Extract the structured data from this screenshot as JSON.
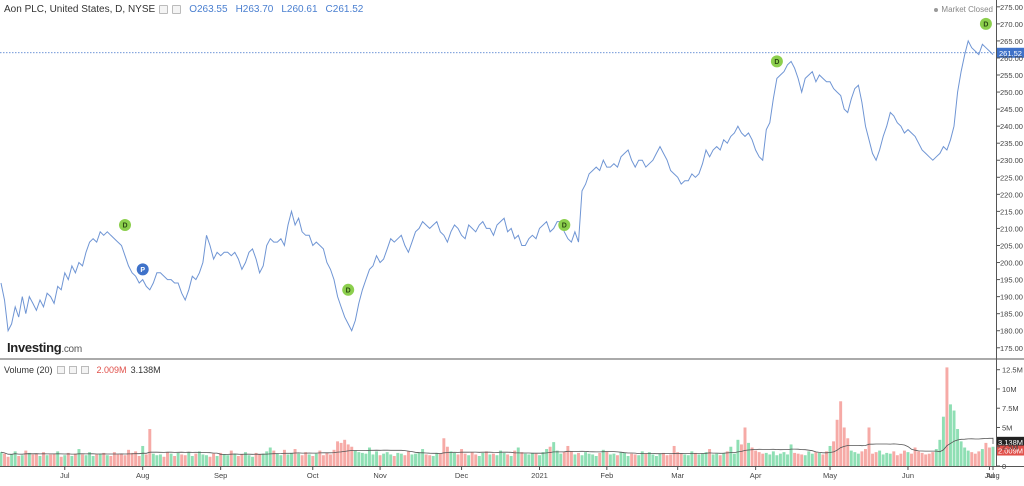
{
  "header": {
    "title": "Aon PLC, United States, D, NYSE",
    "open": "O263.55",
    "high": "H263.70",
    "low": "L260.61",
    "close": "C261.52",
    "market_status": "Market Closed"
  },
  "logo": {
    "brand": "Investing",
    "domain": ".com"
  },
  "volume_legend": {
    "label": "Volume (20)",
    "value1": "2.009M",
    "value2": "3.138M"
  },
  "colors": {
    "price_line": "#6f95d4",
    "up_volume": "#8fdfb4",
    "down_volume": "#f6aaa6",
    "last_price_tag": "#3f72c9",
    "dividend_marker": "#8ccf4d",
    "event_marker": "#3f72c9",
    "ma_line": "#555555"
  },
  "chart_data": [
    {
      "type": "line",
      "title": "Aon PLC, United States, D, NYSE",
      "xlabel": "",
      "ylabel": "",
      "ylim": [
        172,
        277
      ],
      "yticks": [
        175,
        180,
        185,
        190,
        195,
        200,
        205,
        210,
        215,
        220,
        225,
        230,
        235,
        240,
        245,
        250,
        255,
        260,
        265,
        270,
        275
      ],
      "ytick_labels": [
        "175.00",
        "180.00",
        "185.00",
        "190.00",
        "195.00",
        "200.00",
        "205.00",
        "210.00",
        "215.00",
        "220.00",
        "225.00",
        "230.00",
        "235.00",
        "240.00",
        "245.00",
        "250.00",
        "255.00",
        "260.00",
        "265.00",
        "270.00",
        "275.00"
      ],
      "x_tick_labels": [
        "Jul",
        "Aug",
        "Sep",
        "Oct",
        "Nov",
        "Dec",
        "2021",
        "Feb",
        "Mar",
        "Apr",
        "May",
        "Jun",
        "Jul",
        "Aug"
      ],
      "last_price": 261.52,
      "last_price_label": "261.52",
      "grid": false,
      "series": [
        {
          "values": [
            194,
            189,
            180,
            182,
            187,
            184,
            190,
            185,
            190,
            188,
            186,
            189,
            187,
            191,
            190,
            188,
            193,
            192,
            197,
            195,
            199,
            197,
            200,
            199,
            203,
            206,
            207,
            206,
            209,
            208,
            209,
            208,
            207,
            206,
            205,
            202,
            199,
            197,
            196,
            194,
            195,
            193,
            192,
            194,
            197,
            197,
            196,
            195,
            195,
            194,
            194,
            191,
            189,
            192,
            196,
            195,
            197,
            200,
            208,
            205,
            201,
            203,
            202,
            203,
            203,
            202,
            203,
            201,
            198,
            200,
            203,
            204,
            201,
            197,
            199,
            205,
            207,
            206,
            206,
            207,
            205,
            211,
            215,
            211,
            213,
            209,
            208,
            208,
            205,
            206,
            205,
            204,
            200,
            198,
            195,
            190,
            187,
            184,
            182,
            180,
            183,
            188,
            192,
            195,
            198,
            199,
            202,
            200,
            201,
            204,
            207,
            206,
            207,
            208,
            205,
            203,
            206,
            209,
            210,
            212,
            211,
            210,
            211,
            212,
            209,
            208,
            206,
            209,
            211,
            210,
            208,
            207,
            211,
            210,
            209,
            211,
            212,
            210,
            210,
            208,
            211,
            212,
            213,
            209,
            210,
            207,
            208,
            205,
            205,
            207,
            208,
            207,
            210,
            211,
            212,
            209,
            210,
            212,
            212,
            209,
            207,
            206,
            209,
            206,
            221,
            223,
            226,
            227,
            228,
            227,
            230,
            228,
            228,
            229,
            228,
            231,
            232,
            233,
            230,
            228,
            230,
            230,
            228,
            229,
            230,
            232,
            234,
            232,
            230,
            227,
            226,
            225,
            223,
            224,
            224,
            226,
            225,
            226,
            229,
            233,
            231,
            233,
            234,
            233,
            236,
            235,
            237,
            238,
            240,
            238,
            237,
            238,
            236,
            233,
            231,
            230,
            239,
            241,
            248,
            254,
            255,
            256,
            258,
            259,
            257,
            254,
            250,
            254,
            255,
            256,
            253,
            255,
            254,
            253,
            253,
            251,
            250,
            249,
            245,
            244,
            248,
            251,
            252,
            247,
            240,
            236,
            232,
            230,
            233,
            237,
            240,
            244,
            243,
            241,
            240,
            238,
            239,
            238,
            237,
            235,
            233,
            232,
            231,
            230,
            231,
            232,
            234,
            233,
            236,
            240,
            250,
            256,
            261,
            265,
            263,
            262,
            261,
            264,
            263,
            262,
            261
          ]
        }
      ],
      "markers": [
        {
          "label": "D",
          "index": 35,
          "value": 211
        },
        {
          "label": "P",
          "index": 40,
          "value": 198
        },
        {
          "label": "D",
          "index": 98,
          "value": 192
        },
        {
          "label": "D",
          "index": 159,
          "value": 211
        },
        {
          "label": "D",
          "index": 219,
          "value": 259
        },
        {
          "label": "D",
          "index": 278,
          "value": 270
        }
      ]
    },
    {
      "type": "bar",
      "title": "Volume (20)",
      "xlabel": "",
      "ylabel": "",
      "ylim": [
        0,
        13.5
      ],
      "yticks": [
        0,
        2.5,
        5,
        7.5,
        10,
        12.5
      ],
      "ytick_labels": [
        "0",
        "2.5M",
        "5M",
        "7.5M",
        "10M",
        "12.5M"
      ],
      "tag_values": [
        3.138,
        2.009
      ],
      "tag_labels": [
        "3.138M",
        "2.009M"
      ],
      "series": [
        {
          "values": [
            1.8,
            1.6,
            1.2,
            1.5,
            1.9,
            1.3,
            1.4,
            2.0,
            1.7,
            1.5,
            1.6,
            1.3,
            1.8,
            1.4,
            1.5,
            1.6,
            1.9,
            1.2,
            1.4,
            1.7,
            1.3,
            1.6,
            2.2,
            1.5,
            1.4,
            1.8,
            1.3,
            1.5,
            1.6,
            1.7,
            1.4,
            1.3,
            1.8,
            1.5,
            1.6,
            1.4,
            2.1,
            1.7,
            1.9,
            1.3,
            2.6,
            1.5,
            4.8,
            1.6,
            1.4,
            1.5,
            1.2,
            1.8,
            1.6,
            1.3,
            1.7,
            1.5,
            1.4,
            1.8,
            1.3,
            1.6,
            1.9,
            1.5,
            1.4,
            1.2,
            1.6,
            1.3,
            1.7,
            1.5,
            1.4,
            2.0,
            1.6,
            1.3,
            1.5,
            1.8,
            1.4,
            1.2,
            1.7,
            1.5,
            1.6,
            1.9,
            2.4,
            2.0,
            1.6,
            1.4,
            2.1,
            1.5,
            1.7,
            2.2,
            1.6,
            1.4,
            1.8,
            1.5,
            1.3,
            1.6,
            2.0,
            1.4,
            1.7,
            1.5,
            2.1,
            3.2,
            3.0,
            3.4,
            2.8,
            2.5,
            2.0,
            1.8,
            1.7,
            1.6,
            2.4,
            1.5,
            1.9,
            1.4,
            1.6,
            1.8,
            1.5,
            1.3,
            1.7,
            1.6,
            1.4,
            1.9,
            1.5,
            1.6,
            1.8,
            2.2,
            1.5,
            1.4,
            1.3,
            1.7,
            1.6,
            3.6,
            2.5,
            1.9,
            1.7,
            1.5,
            2.2,
            1.6,
            1.4,
            1.8,
            1.5,
            1.3,
            1.7,
            1.9,
            1.5,
            1.6,
            1.4,
            2.0,
            1.7,
            1.5,
            1.3,
            2.0,
            2.4,
            1.8,
            1.6,
            1.5,
            1.7,
            1.6,
            1.4,
            1.8,
            2.2,
            2.5,
            3.1,
            2.0,
            1.6,
            1.8,
            2.6,
            1.9,
            1.5,
            1.7,
            1.4,
            1.8,
            1.6,
            1.5,
            1.3,
            1.7,
            2.1,
            1.9,
            1.5,
            1.6,
            1.4,
            1.8,
            1.7,
            1.3,
            1.6,
            1.5,
            1.4,
            1.9,
            1.6,
            1.8,
            1.5,
            1.3,
            1.6,
            1.7,
            1.4,
            1.5,
            2.6,
            1.8,
            1.6,
            1.5,
            1.4,
            1.9,
            1.7,
            1.5,
            1.6,
            1.8,
            2.2,
            1.5,
            1.6,
            1.4,
            1.7,
            1.9,
            2.5,
            1.6,
            3.4,
            2.8,
            5.0,
            3.0,
            2.4,
            2.0,
            1.8,
            1.6,
            1.7,
            1.5,
            1.9,
            1.4,
            1.6,
            1.8,
            1.5,
            2.8,
            1.7,
            1.6,
            1.5,
            1.4,
            1.9,
            1.6,
            1.8,
            1.7,
            1.5,
            1.9,
            2.6,
            3.2,
            6.0,
            8.4,
            5.0,
            3.6,
            2.0,
            1.8,
            1.6,
            1.9,
            2.2,
            5.0,
            1.6,
            1.8,
            2.0,
            1.5,
            1.7,
            1.6,
            1.9,
            1.4,
            1.6,
            2.0,
            1.8,
            1.6,
            2.4,
            1.9,
            1.7,
            1.5,
            1.6,
            1.8,
            2.2,
            3.4,
            6.4,
            12.8,
            8.0,
            7.2,
            4.8,
            3.2,
            2.4,
            2.0,
            1.8,
            1.6,
            1.9,
            2.2,
            3.0,
            2.4,
            2.0,
            1.8,
            1.6,
            2.1,
            2.5,
            2.4,
            2.2,
            2.0
          ]
        }
      ]
    }
  ]
}
